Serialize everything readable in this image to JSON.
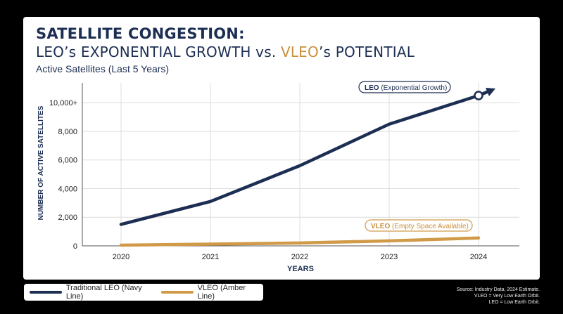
{
  "header": {
    "title_line1": "SATELLITE CONGESTION:",
    "title_line2_a": "LEO’s EXPONENTIAL GROWTH vs. ",
    "title_line2_b": "VLEO",
    "title_line2_c": "’s POTENTIAL",
    "subtitle": "Active Satellites (Last 5 Years)"
  },
  "colors": {
    "navy": "#1c2e52",
    "amber": "#d19a48",
    "background": "#000000",
    "card": "#ffffff"
  },
  "chart_data": {
    "type": "line",
    "xlabel": "YEARS",
    "ylabel": "NUMBER OF ACTIVE SATELLITES",
    "x": [
      2020,
      2021,
      2022,
      2023,
      2024
    ],
    "ylim": [
      0,
      10500
    ],
    "yticks": [
      0,
      2000,
      4000,
      6000,
      8000,
      10000
    ],
    "ytick_labels": [
      "0",
      "2,000",
      "4,000",
      "6,000",
      "8,000",
      "10,000+"
    ],
    "grid": true,
    "series": [
      {
        "name": "LEO",
        "annotation": "(Exponential Growth)",
        "color": "#1c2e52",
        "values": [
          1500,
          3100,
          5600,
          8500,
          10500
        ]
      },
      {
        "name": "VLEO",
        "annotation": "(Empty Space Available)",
        "color": "#d19a48",
        "values": [
          50,
          120,
          200,
          350,
          550
        ]
      }
    ],
    "legend": [
      {
        "label": "Traditional LEO (Navy Line)",
        "color": "#1c2e52"
      },
      {
        "label": "VLEO (Amber Line)",
        "color": "#d19a48"
      }
    ]
  },
  "source": {
    "line1": "Source: Industry Data, 2024 Estimate.",
    "line2": "VLEO = Very Low Earth Orbit.",
    "line3": "LEO = Low Earth Orbit."
  }
}
